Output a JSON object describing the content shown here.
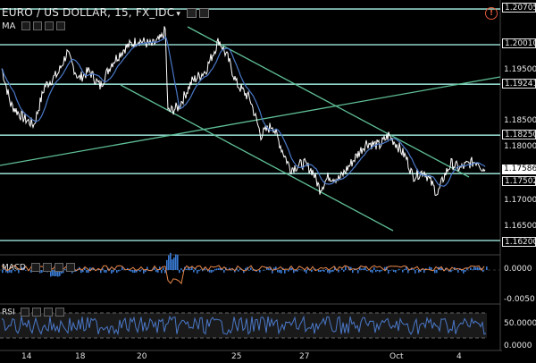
{
  "window": {
    "title": "EURO / US DOLLAR, 15, FX_IDC",
    "alert_icon": "exclamation-circle-icon",
    "alert_glyph": "!"
  },
  "indicators": {
    "ma": "MA",
    "macd": "MACD",
    "rsi": "RSI"
  },
  "price_axis": {
    "labels": [
      "1.20705",
      "1.20010",
      "1.19500",
      "1.19241",
      "1.18500",
      "1.18250",
      "1.18000",
      "1.17586",
      "1.17502",
      "1.17000",
      "1.16500",
      "1.16200"
    ]
  },
  "macd_axis": {
    "labels": [
      "0.0000",
      "-0.0050"
    ]
  },
  "rsi_axis": {
    "labels": [
      "50.0000",
      "0.0000"
    ]
  },
  "time_axis": {
    "labels": [
      "14",
      "18",
      "20",
      "25",
      "27",
      "Oct",
      "4"
    ]
  },
  "horizontal_levels": [
    "1.20705",
    "1.20010",
    "1.19241",
    "1.18250",
    "1.17502",
    "1.16200"
  ],
  "current_price": "1.17586",
  "colors": {
    "background": "#000000",
    "price": "#ffffff",
    "level_line": "#8fd3c8",
    "trend_line": "#5fbf96",
    "ma_line": "#4a78c8",
    "macd_hist": "#3a7bd5",
    "macd_signal": "#e8874a",
    "rsi_line": "#4a78c8"
  }
}
